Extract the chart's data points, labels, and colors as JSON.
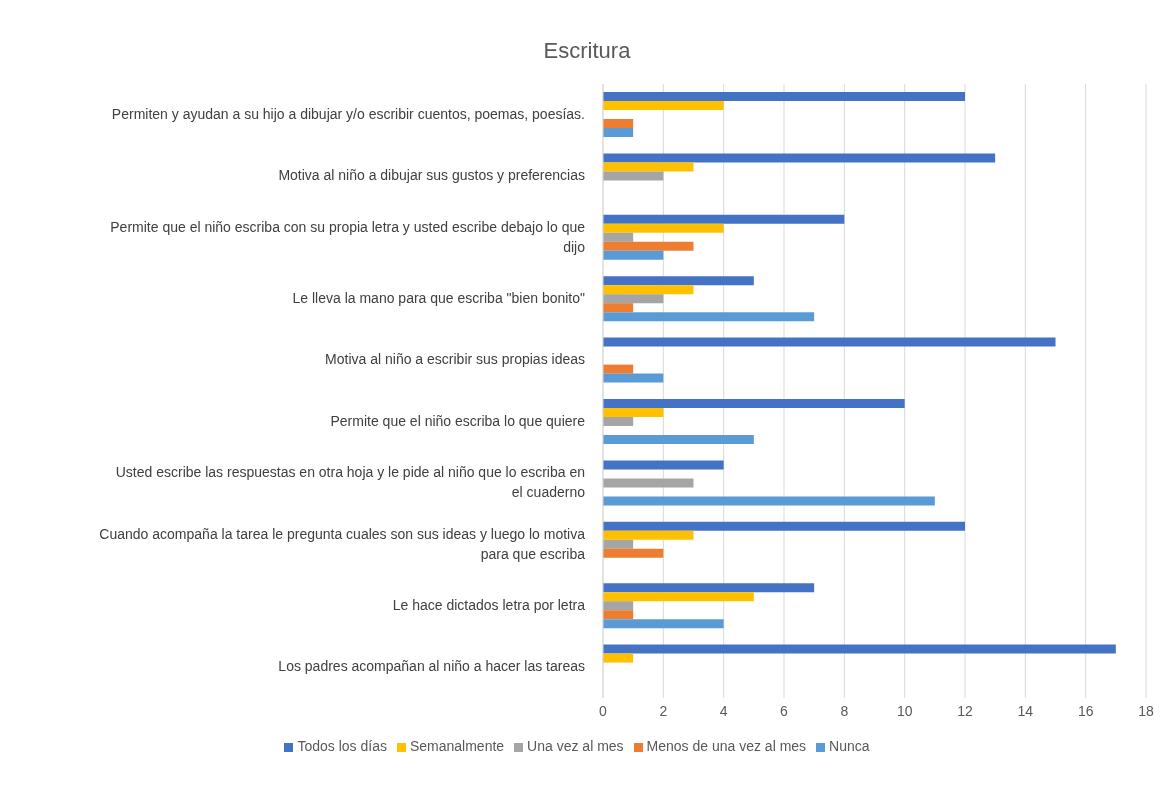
{
  "chart_data": {
    "type": "bar",
    "orientation": "horizontal",
    "title": "Escritura",
    "categories": [
      "Permiten y ayudan a su hijo a dibujar y/o escribir cuentos, poemas, poesías.",
      "Motiva al niño a dibujar sus gustos y preferencias",
      "Permite que el niño escriba con su propia letra y usted escribe debajo lo que dijo",
      "Le lleva la mano para que escriba \"bien bonito\"",
      "Motiva al niño a escribir sus propias ideas",
      "Permite que el niño escriba lo que quiere",
      "Usted escribe las respuestas en otra hoja y le pide al niño que lo escriba en el cuaderno",
      "Cuando acompaña la tarea le pregunta cuales son sus ideas y luego lo motiva para que escriba",
      "Le hace dictados letra por letra",
      "Los padres acompañan al niño a hacer las tareas"
    ],
    "series": [
      {
        "name": "Todos los días",
        "color": "#4472c4",
        "values": [
          12,
          13,
          8,
          5,
          15,
          10,
          4,
          12,
          7,
          17
        ]
      },
      {
        "name": "Semanalmente",
        "color": "#ffc000",
        "values": [
          4,
          3,
          4,
          3,
          0,
          2,
          0,
          3,
          5,
          1
        ]
      },
      {
        "name": "Una vez al mes",
        "color": "#a5a5a5",
        "values": [
          0,
          2,
          1,
          2,
          0,
          1,
          3,
          1,
          1,
          0
        ]
      },
      {
        "name": "Menos de una vez al  mes",
        "color": "#ed7d31",
        "values": [
          1,
          0,
          3,
          1,
          1,
          0,
          0,
          2,
          1,
          0
        ]
      },
      {
        "name": "Nunca",
        "color": "#5b9bd5",
        "values": [
          1,
          0,
          2,
          7,
          2,
          5,
          11,
          0,
          4,
          0
        ]
      }
    ],
    "xlim": [
      0,
      18
    ],
    "xticks": [
      0,
      2,
      4,
      6,
      8,
      10,
      12,
      14,
      16,
      18
    ],
    "grid": "x",
    "legend": "bottom"
  }
}
